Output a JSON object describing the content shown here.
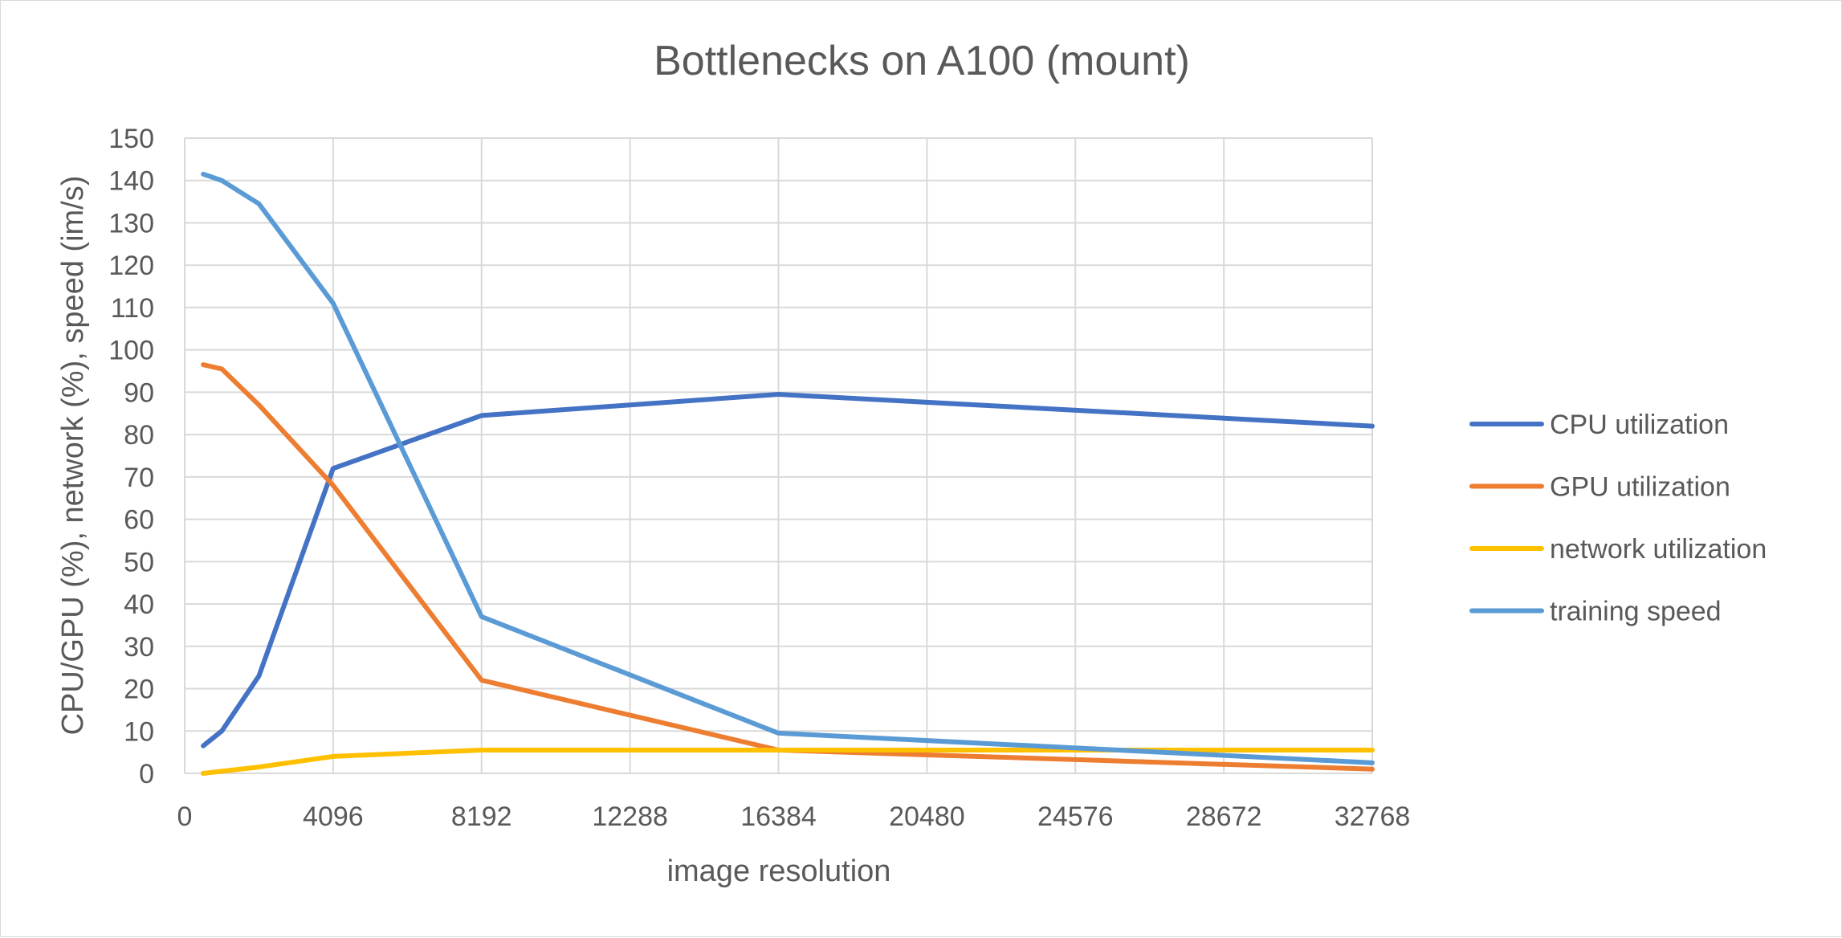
{
  "chart_data": {
    "type": "line",
    "title": "Bottlenecks on A100 (mount)",
    "xlabel": "image resolution",
    "ylabel": "CPU/GPU (%), network (%), speed (im/s)",
    "xlim": [
      0,
      32768
    ],
    "ylim": [
      0,
      150
    ],
    "x_ticks": [
      "0",
      "4096",
      "8192",
      "12288",
      "16384",
      "20480",
      "24576",
      "28672",
      "32768"
    ],
    "y_ticks": [
      "0",
      "10",
      "20",
      "30",
      "40",
      "50",
      "60",
      "70",
      "80",
      "90",
      "100",
      "110",
      "120",
      "130",
      "140",
      "150"
    ],
    "grid": true,
    "legend_position": "right",
    "x": [
      512,
      1024,
      2048,
      4096,
      8192,
      16384,
      32768
    ],
    "series": [
      {
        "name": "CPU utilization",
        "color": "#4472c4",
        "values": [
          6.5,
          10,
          23,
          72,
          84.5,
          89.5,
          82
        ]
      },
      {
        "name": "GPU utilization",
        "color": "#ed7d31",
        "values": [
          96.5,
          95.5,
          87,
          68,
          22,
          5.5,
          1
        ]
      },
      {
        "name": "network utilization",
        "color": "#ffc000",
        "values": [
          0,
          0.5,
          1.5,
          4,
          5.5,
          5.5,
          5.5
        ]
      },
      {
        "name": "training speed",
        "color": "#5b9bd5",
        "values": [
          141.5,
          140,
          134.5,
          111,
          37,
          9.5,
          2.5
        ]
      }
    ]
  }
}
